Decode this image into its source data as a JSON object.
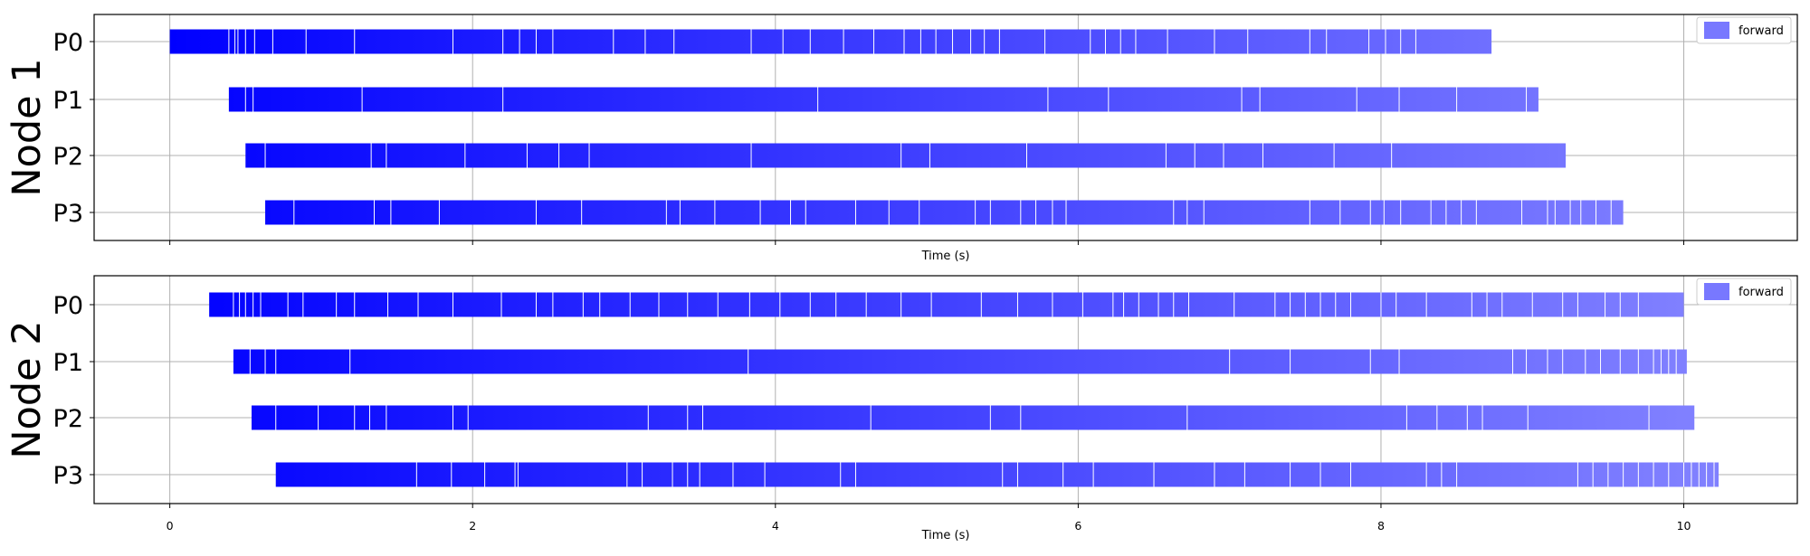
{
  "chart_data": [
    {
      "type": "gantt",
      "title": "Node 1",
      "xlabel": "Time (s)",
      "ylabel": "Node 1",
      "xlim": [
        -0.5,
        10.75
      ],
      "xticks": [
        0,
        2,
        4,
        6,
        8,
        10
      ],
      "grid": true,
      "legend": {
        "label": "forward",
        "color": "#7878ff",
        "position": "top-right"
      },
      "color_start": "#0000ff",
      "color_end": "#8080ff",
      "series": [
        {
          "name": "P0",
          "start": 0.0,
          "end": 8.73,
          "breaks": [
            0.39,
            0.43,
            0.45,
            0.5,
            0.56,
            0.68,
            0.9,
            1.22,
            1.87,
            2.2,
            2.31,
            2.42,
            2.53,
            2.93,
            3.14,
            3.33,
            3.84,
            4.05,
            4.23,
            4.45,
            4.65,
            4.85,
            4.96,
            5.06,
            5.17,
            5.29,
            5.38,
            5.48,
            5.78,
            6.08,
            6.18,
            6.28,
            6.38,
            6.59,
            6.9,
            7.12,
            7.53,
            7.64,
            7.92,
            8.03,
            8.13,
            8.23
          ]
        },
        {
          "name": "P1",
          "start": 0.39,
          "end": 9.04,
          "breaks": [
            0.5,
            0.55,
            1.27,
            2.2,
            4.28,
            5.8,
            6.2,
            7.08,
            7.2,
            7.84,
            8.12,
            8.5,
            8.96
          ]
        },
        {
          "name": "P2",
          "start": 0.5,
          "end": 9.22,
          "breaks": [
            0.63,
            1.33,
            1.43,
            1.95,
            2.36,
            2.57,
            2.77,
            3.84,
            4.83,
            5.02,
            5.66,
            6.58,
            6.77,
            6.96,
            7.22,
            7.69,
            8.07
          ]
        },
        {
          "name": "P3",
          "start": 0.63,
          "end": 9.6,
          "breaks": [
            0.82,
            1.35,
            1.46,
            1.78,
            2.42,
            2.72,
            3.28,
            3.37,
            3.6,
            3.9,
            4.1,
            4.2,
            4.53,
            4.75,
            4.95,
            5.32,
            5.42,
            5.62,
            5.72,
            5.83,
            5.92,
            6.63,
            6.72,
            6.83,
            7.53,
            7.73,
            7.93,
            8.02,
            8.13,
            8.33,
            8.43,
            8.53,
            8.63,
            8.93,
            9.1,
            9.15,
            9.25,
            9.32,
            9.42,
            9.52
          ]
        }
      ]
    },
    {
      "type": "gantt",
      "title": "Node 2",
      "xlabel": "Time (s)",
      "ylabel": "Node 2",
      "xlim": [
        -0.5,
        10.75
      ],
      "xticks": [
        0,
        2,
        4,
        6,
        8,
        10
      ],
      "grid": true,
      "legend": {
        "label": "forward",
        "color": "#7878ff",
        "position": "top-right"
      },
      "color_start": "#0000ff",
      "color_end": "#8080ff",
      "series": [
        {
          "name": "P0",
          "start": 0.26,
          "end": 10.0,
          "breaks": [
            0.42,
            0.46,
            0.5,
            0.55,
            0.6,
            0.78,
            0.88,
            1.1,
            1.22,
            1.44,
            1.64,
            1.87,
            2.19,
            2.42,
            2.53,
            2.73,
            2.84,
            3.04,
            3.23,
            3.42,
            3.62,
            3.83,
            4.03,
            4.23,
            4.4,
            4.6,
            4.83,
            5.03,
            5.36,
            5.6,
            5.83,
            6.03,
            6.23,
            6.3,
            6.4,
            6.53,
            6.63,
            6.73,
            7.03,
            7.3,
            7.4,
            7.5,
            7.6,
            7.7,
            7.8,
            8.0,
            8.1,
            8.3,
            8.6,
            8.7,
            8.8,
            9.0,
            9.2,
            9.3,
            9.48,
            9.58,
            9.7
          ]
        },
        {
          "name": "P1",
          "start": 0.42,
          "end": 10.02,
          "breaks": [
            0.53,
            0.63,
            0.7,
            1.19,
            3.82,
            7.0,
            7.4,
            7.93,
            8.12,
            8.87,
            8.96,
            9.1,
            9.2,
            9.35,
            9.45,
            9.58,
            9.7,
            9.8,
            9.85,
            9.9,
            9.95
          ]
        },
        {
          "name": "P2",
          "start": 0.54,
          "end": 10.07,
          "breaks": [
            0.7,
            0.98,
            1.22,
            1.32,
            1.43,
            1.87,
            1.97,
            3.16,
            3.42,
            3.52,
            4.63,
            5.42,
            5.62,
            6.72,
            8.17,
            8.37,
            8.57,
            8.67,
            8.97,
            9.77
          ]
        },
        {
          "name": "P3",
          "start": 0.7,
          "end": 10.23,
          "breaks": [
            1.63,
            1.86,
            2.08,
            2.28,
            2.3,
            3.02,
            3.12,
            3.32,
            3.42,
            3.5,
            3.72,
            3.93,
            4.43,
            4.53,
            5.5,
            5.6,
            5.9,
            6.1,
            6.5,
            6.9,
            7.1,
            7.4,
            7.6,
            7.8,
            8.3,
            8.4,
            8.5,
            9.3,
            9.4,
            9.5,
            9.6,
            9.7,
            9.8,
            9.9,
            10.0,
            10.05,
            10.1,
            10.15,
            10.2
          ]
        }
      ]
    }
  ]
}
